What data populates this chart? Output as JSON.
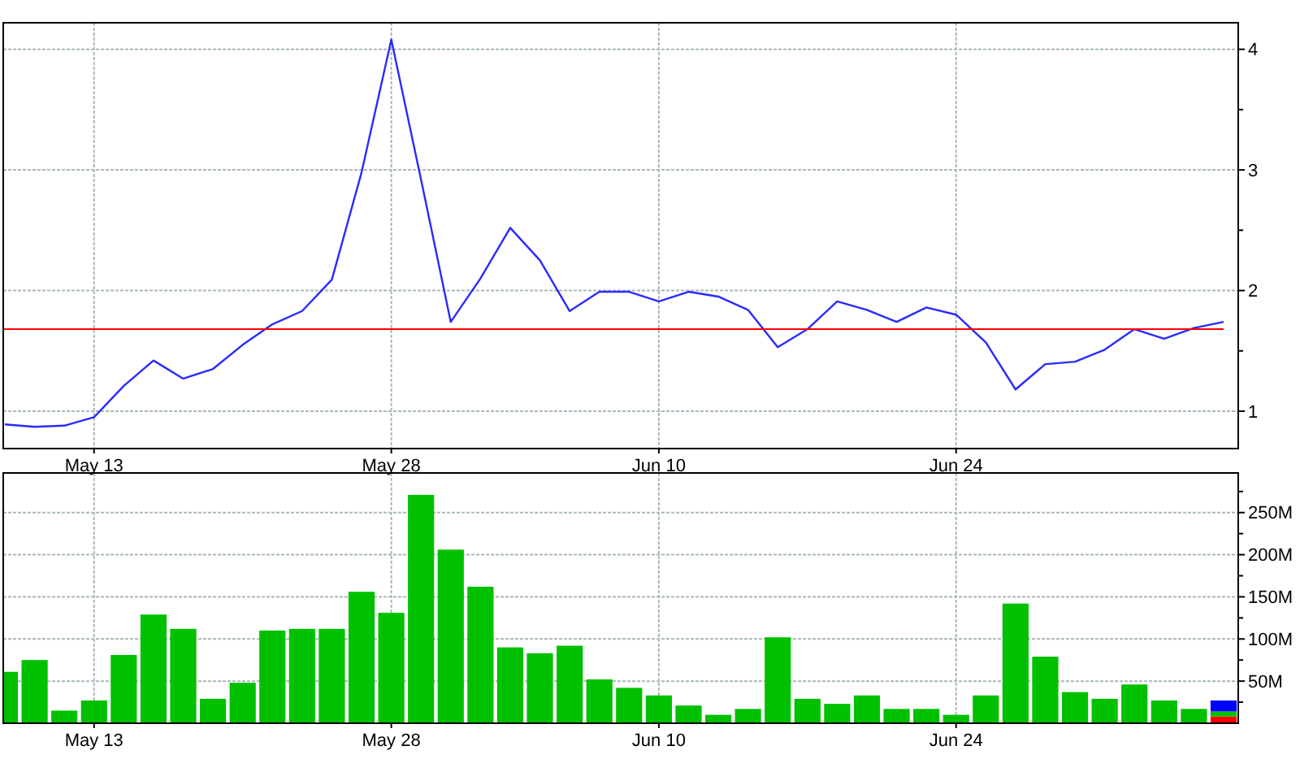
{
  "chart_data": [
    {
      "type": "line",
      "categories": [
        null,
        null,
        null,
        "May 13",
        null,
        null,
        null,
        null,
        null,
        null,
        null,
        null,
        null,
        "May 28",
        null,
        null,
        null,
        null,
        null,
        null,
        null,
        null,
        "Jun 10",
        null,
        null,
        null,
        null,
        null,
        null,
        null,
        null,
        null,
        "Jun 24",
        null,
        null,
        null,
        null,
        null,
        null,
        null,
        null,
        null
      ],
      "series": [
        {
          "color": "#2a2aff",
          "values": [
            0.89,
            0.87,
            0.88,
            0.95,
            1.21,
            1.42,
            1.27,
            1.35,
            1.55,
            1.72,
            1.83,
            2.09,
            2.98,
            4.08,
            2.92,
            1.74,
            2.1,
            2.52,
            2.25,
            1.83,
            1.99,
            1.99,
            1.91,
            1.99,
            1.95,
            1.84,
            1.53,
            1.68,
            1.91,
            1.84,
            1.74,
            1.86,
            1.8,
            1.57,
            1.18,
            1.39,
            1.41,
            1.51,
            1.68,
            1.6,
            1.69,
            1.74
          ]
        }
      ],
      "ylim": [
        0.69,
        4.22
      ],
      "yticks": [
        1,
        {
          "value": 1.5,
          "label": null
        },
        2,
        {
          "value": 2.5,
          "label": null
        },
        3,
        {
          "value": 3.5,
          "label": null
        },
        4
      ],
      "grid": true,
      "ref_lines": [
        {
          "axis": "y",
          "value": 1.68,
          "color": "#ff0000"
        }
      ]
    },
    {
      "type": "bar",
      "stacked": true,
      "categories": [
        null,
        null,
        null,
        "May 13",
        null,
        null,
        null,
        null,
        null,
        null,
        null,
        null,
        null,
        "May 28",
        null,
        null,
        null,
        null,
        null,
        null,
        null,
        null,
        "Jun 10",
        null,
        null,
        null,
        null,
        null,
        null,
        null,
        null,
        null,
        "Jun 24",
        null,
        null,
        null,
        null,
        null,
        null,
        null,
        null,
        null
      ],
      "series": [
        {
          "color": "#ff0000",
          "values": [
            null,
            null,
            null,
            null,
            null,
            null,
            null,
            null,
            null,
            null,
            null,
            null,
            null,
            null,
            null,
            null,
            null,
            null,
            null,
            null,
            null,
            null,
            null,
            null,
            null,
            null,
            null,
            null,
            null,
            null,
            null,
            null,
            null,
            null,
            null,
            null,
            null,
            null,
            null,
            null,
            null,
            8
          ]
        },
        {
          "color": "#00c000",
          "values": [
            61,
            75,
            15,
            27,
            81,
            129,
            112,
            29,
            48,
            110,
            112,
            112,
            156,
            131,
            271,
            206,
            162,
            90,
            83,
            92,
            52,
            42,
            33,
            21,
            10,
            17,
            102,
            29,
            23,
            33,
            17,
            17,
            10,
            33,
            142,
            79,
            37,
            29,
            46,
            27,
            17,
            6
          ]
        },
        {
          "color": "#0000ff",
          "values": [
            null,
            null,
            null,
            null,
            null,
            null,
            null,
            null,
            null,
            null,
            null,
            null,
            null,
            null,
            null,
            null,
            null,
            null,
            null,
            null,
            null,
            null,
            null,
            null,
            null,
            null,
            null,
            null,
            null,
            null,
            null,
            null,
            null,
            null,
            null,
            null,
            null,
            null,
            null,
            null,
            null,
            13
          ]
        }
      ],
      "ylim": [
        0,
        297
      ],
      "yticks": [
        {
          "value": 25,
          "label": null
        },
        {
          "value": 50,
          "label": "50M"
        },
        {
          "value": 75,
          "label": null
        },
        {
          "value": 100,
          "label": "100M"
        },
        {
          "value": 125,
          "label": null
        },
        {
          "value": 150,
          "label": "150M"
        },
        {
          "value": 175,
          "label": null
        },
        {
          "value": 200,
          "label": "200M"
        },
        {
          "value": 225,
          "label": null
        },
        {
          "value": 250,
          "label": "250M"
        },
        {
          "value": 275,
          "label": null
        }
      ],
      "grid": true
    }
  ]
}
